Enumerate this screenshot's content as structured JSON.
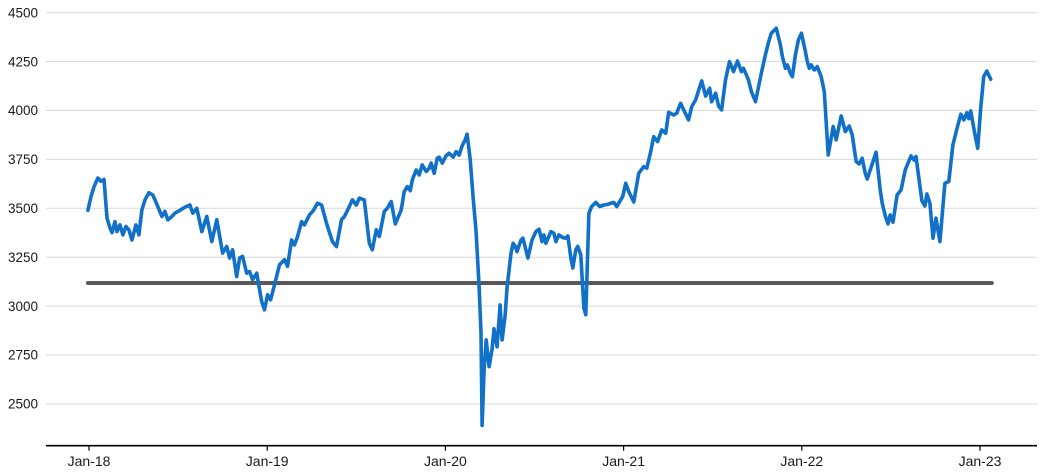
{
  "page": {
    "title": ""
  },
  "colors": {
    "background": "#ffffff",
    "grid": "#d9d9d9",
    "axis": "#000000",
    "tick_text": "#1a1a1a",
    "series_blue": "#1170c8",
    "series_gray": "#595959"
  },
  "chart_data": {
    "type": "line",
    "title": "",
    "legend": "none",
    "grid": "horizontal",
    "x_axis": {
      "tick_labels": [
        "Jan-18",
        "Jan-19",
        "Jan-20",
        "Jan-21",
        "Jan-22",
        "Jan-23"
      ],
      "tick_years": [
        2018,
        2019,
        2020,
        2021,
        2022,
        2023
      ]
    },
    "y_axis": {
      "ticks": [
        4500,
        4250,
        4000,
        3750,
        3500,
        3250,
        3000,
        2750,
        2500
      ]
    },
    "series": [
      {
        "name": "index-price",
        "color_key": "series_blue",
        "stroke_width": 3.6,
        "points": [
          [
            2017.994,
            3490
          ],
          [
            2018.011,
            3560
          ],
          [
            2018.028,
            3610
          ],
          [
            2018.05,
            3655
          ],
          [
            2018.067,
            3638
          ],
          [
            2018.084,
            3648
          ],
          [
            2018.101,
            3450
          ],
          [
            2018.118,
            3400
          ],
          [
            2018.129,
            3376
          ],
          [
            2018.146,
            3432
          ],
          [
            2018.157,
            3381
          ],
          [
            2018.174,
            3415
          ],
          [
            2018.19,
            3364
          ],
          [
            2018.207,
            3407
          ],
          [
            2018.224,
            3390
          ],
          [
            2018.241,
            3338
          ],
          [
            2018.263,
            3415
          ],
          [
            2018.28,
            3364
          ],
          [
            2018.297,
            3492
          ],
          [
            2018.314,
            3543
          ],
          [
            2018.336,
            3580
          ],
          [
            2018.358,
            3568
          ],
          [
            2018.381,
            3520
          ],
          [
            2018.409,
            3458
          ],
          [
            2018.426,
            3484
          ],
          [
            2018.442,
            3441
          ],
          [
            2018.465,
            3458
          ],
          [
            2018.482,
            3475
          ],
          [
            2018.51,
            3490
          ],
          [
            2018.537,
            3505
          ],
          [
            2018.566,
            3517
          ],
          [
            2018.582,
            3475
          ],
          [
            2018.605,
            3500
          ],
          [
            2018.633,
            3381
          ],
          [
            2018.661,
            3458
          ],
          [
            2018.689,
            3330
          ],
          [
            2018.717,
            3441
          ],
          [
            2018.75,
            3271
          ],
          [
            2018.773,
            3305
          ],
          [
            2018.789,
            3246
          ],
          [
            2018.806,
            3288
          ],
          [
            2018.829,
            3151
          ],
          [
            2018.845,
            3246
          ],
          [
            2018.862,
            3254
          ],
          [
            2018.885,
            3168
          ],
          [
            2018.901,
            3177
          ],
          [
            2018.918,
            3135
          ],
          [
            2018.941,
            3168
          ],
          [
            2018.969,
            3023
          ],
          [
            2018.985,
            2981
          ],
          [
            2019.002,
            3058
          ],
          [
            2019.019,
            3032
          ],
          [
            2019.041,
            3109
          ],
          [
            2019.069,
            3211
          ],
          [
            2019.097,
            3237
          ],
          [
            2019.114,
            3203
          ],
          [
            2019.137,
            3338
          ],
          [
            2019.153,
            3313
          ],
          [
            2019.17,
            3355
          ],
          [
            2019.193,
            3432
          ],
          [
            2019.209,
            3415
          ],
          [
            2019.237,
            3466
          ],
          [
            2019.26,
            3490
          ],
          [
            2019.282,
            3526
          ],
          [
            2019.305,
            3517
          ],
          [
            2019.333,
            3424
          ],
          [
            2019.366,
            3330
          ],
          [
            2019.389,
            3304
          ],
          [
            2019.417,
            3441
          ],
          [
            2019.433,
            3458
          ],
          [
            2019.456,
            3500
          ],
          [
            2019.478,
            3543
          ],
          [
            2019.5,
            3517
          ],
          [
            2019.517,
            3552
          ],
          [
            2019.545,
            3543
          ],
          [
            2019.573,
            3322
          ],
          [
            2019.59,
            3288
          ],
          [
            2019.612,
            3390
          ],
          [
            2019.629,
            3356
          ],
          [
            2019.657,
            3484
          ],
          [
            2019.674,
            3500
          ],
          [
            2019.696,
            3534
          ],
          [
            2019.719,
            3420
          ],
          [
            2019.752,
            3492
          ],
          [
            2019.769,
            3585
          ],
          [
            2019.786,
            3611
          ],
          [
            2019.803,
            3590
          ],
          [
            2019.814,
            3645
          ],
          [
            2019.836,
            3696
          ],
          [
            2019.853,
            3670
          ],
          [
            2019.87,
            3722
          ],
          [
            2019.892,
            3688
          ],
          [
            2019.909,
            3705
          ],
          [
            2019.92,
            3731
          ],
          [
            2019.937,
            3679
          ],
          [
            2019.954,
            3756
          ],
          [
            2019.965,
            3761
          ],
          [
            2019.982,
            3731
          ],
          [
            2020.004,
            3769
          ],
          [
            2020.021,
            3781
          ],
          [
            2020.044,
            3762
          ],
          [
            2020.06,
            3790
          ],
          [
            2020.077,
            3772
          ],
          [
            2020.094,
            3820
          ],
          [
            2020.111,
            3850
          ],
          [
            2020.122,
            3879
          ],
          [
            2020.139,
            3750
          ],
          [
            2020.156,
            3550
          ],
          [
            2020.172,
            3380
          ],
          [
            2020.189,
            3100
          ],
          [
            2020.2,
            2863
          ],
          [
            2020.206,
            2390
          ],
          [
            2020.217,
            2674
          ],
          [
            2020.229,
            2827
          ],
          [
            2020.245,
            2690
          ],
          [
            2020.262,
            2780
          ],
          [
            2020.273,
            2884
          ],
          [
            2020.29,
            2792
          ],
          [
            2020.307,
            3006
          ],
          [
            2020.318,
            2827
          ],
          [
            2020.335,
            2950
          ],
          [
            2020.346,
            3098
          ],
          [
            2020.368,
            3270
          ],
          [
            2020.38,
            3321
          ],
          [
            2020.391,
            3307
          ],
          [
            2020.402,
            3278
          ],
          [
            2020.424,
            3338
          ],
          [
            2020.435,
            3347
          ],
          [
            2020.452,
            3288
          ],
          [
            2020.463,
            3246
          ],
          [
            2020.486,
            3338
          ],
          [
            2020.508,
            3381
          ],
          [
            2020.525,
            3393
          ],
          [
            2020.542,
            3330
          ],
          [
            2020.553,
            3364
          ],
          [
            2020.564,
            3321
          ],
          [
            2020.592,
            3381
          ],
          [
            2020.609,
            3372
          ],
          [
            2020.62,
            3330
          ],
          [
            2020.637,
            3364
          ],
          [
            2020.659,
            3350
          ],
          [
            2020.676,
            3347
          ],
          [
            2020.687,
            3359
          ],
          [
            2020.704,
            3246
          ],
          [
            2020.715,
            3195
          ],
          [
            2020.732,
            3288
          ],
          [
            2020.743,
            3305
          ],
          [
            2020.76,
            3262
          ],
          [
            2020.777,
            2990
          ],
          [
            2020.788,
            2956
          ],
          [
            2020.805,
            3475
          ],
          [
            2020.821,
            3509
          ],
          [
            2020.844,
            3530
          ],
          [
            2020.866,
            3509
          ],
          [
            2020.889,
            3517
          ],
          [
            2020.911,
            3520
          ],
          [
            2020.928,
            3526
          ],
          [
            2020.945,
            3530
          ],
          [
            2020.962,
            3509
          ],
          [
            2020.978,
            3535
          ],
          [
            2020.995,
            3560
          ],
          [
            2021.012,
            3628
          ],
          [
            2021.029,
            3585
          ],
          [
            2021.057,
            3532
          ],
          [
            2021.085,
            3679
          ],
          [
            2021.113,
            3713
          ],
          [
            2021.13,
            3705
          ],
          [
            2021.152,
            3790
          ],
          [
            2021.169,
            3866
          ],
          [
            2021.191,
            3841
          ],
          [
            2021.214,
            3901
          ],
          [
            2021.236,
            3884
          ],
          [
            2021.253,
            3991
          ],
          [
            2021.281,
            3977
          ],
          [
            2021.298,
            3986
          ],
          [
            2021.32,
            4037
          ],
          [
            2021.337,
            4003
          ],
          [
            2021.365,
            3952
          ],
          [
            2021.382,
            4020
          ],
          [
            2021.404,
            4054
          ],
          [
            2021.438,
            4152
          ],
          [
            2021.46,
            4074
          ],
          [
            2021.483,
            4114
          ],
          [
            2021.494,
            4045
          ],
          [
            2021.516,
            4088
          ],
          [
            2021.533,
            4023
          ],
          [
            2021.55,
            4003
          ],
          [
            2021.572,
            4156
          ],
          [
            2021.594,
            4250
          ],
          [
            2021.617,
            4199
          ],
          [
            2021.639,
            4253
          ],
          [
            2021.661,
            4199
          ],
          [
            2021.673,
            4216
          ],
          [
            2021.701,
            4156
          ],
          [
            2021.717,
            4096
          ],
          [
            2021.74,
            4045
          ],
          [
            2021.773,
            4190
          ],
          [
            2021.796,
            4285
          ],
          [
            2021.812,
            4344
          ],
          [
            2021.829,
            4395
          ],
          [
            2021.857,
            4420
          ],
          [
            2021.88,
            4335
          ],
          [
            2021.891,
            4275
          ],
          [
            2021.908,
            4216
          ],
          [
            2021.919,
            4233
          ],
          [
            2021.936,
            4190
          ],
          [
            2021.947,
            4173
          ],
          [
            2021.964,
            4285
          ],
          [
            2021.981,
            4361
          ],
          [
            2021.998,
            4395
          ],
          [
            2022.02,
            4301
          ],
          [
            2022.031,
            4250
          ],
          [
            2022.042,
            4216
          ],
          [
            2022.053,
            4233
          ],
          [
            2022.07,
            4207
          ],
          [
            2022.087,
            4224
          ],
          [
            2022.109,
            4173
          ],
          [
            2022.126,
            4096
          ],
          [
            2022.148,
            3773
          ],
          [
            2022.176,
            3918
          ],
          [
            2022.193,
            3850
          ],
          [
            2022.221,
            3972
          ],
          [
            2022.244,
            3892
          ],
          [
            2022.266,
            3921
          ],
          [
            2022.283,
            3875
          ],
          [
            2022.305,
            3739
          ],
          [
            2022.322,
            3727
          ],
          [
            2022.339,
            3756
          ],
          [
            2022.356,
            3679
          ],
          [
            2022.367,
            3650
          ],
          [
            2022.384,
            3696
          ],
          [
            2022.417,
            3787
          ],
          [
            2022.44,
            3594
          ],
          [
            2022.451,
            3526
          ],
          [
            2022.468,
            3463
          ],
          [
            2022.484,
            3420
          ],
          [
            2022.496,
            3466
          ],
          [
            2022.512,
            3429
          ],
          [
            2022.535,
            3568
          ],
          [
            2022.557,
            3594
          ],
          [
            2022.58,
            3696
          ],
          [
            2022.613,
            3768
          ],
          [
            2022.63,
            3747
          ],
          [
            2022.641,
            3765
          ],
          [
            2022.658,
            3645
          ],
          [
            2022.674,
            3539
          ],
          [
            2022.691,
            3512
          ],
          [
            2022.702,
            3573
          ],
          [
            2022.719,
            3526
          ],
          [
            2022.736,
            3347
          ],
          [
            2022.753,
            3450
          ],
          [
            2022.775,
            3330
          ],
          [
            2022.803,
            3628
          ],
          [
            2022.825,
            3637
          ],
          [
            2022.848,
            3824
          ],
          [
            2022.87,
            3904
          ],
          [
            2022.892,
            3981
          ],
          [
            2022.909,
            3952
          ],
          [
            2022.926,
            3989
          ],
          [
            2022.937,
            3958
          ],
          [
            2022.948,
            3998
          ],
          [
            2022.97,
            3884
          ],
          [
            2022.987,
            3807
          ],
          [
            2023.004,
            4011
          ],
          [
            2023.021,
            4173
          ],
          [
            2023.038,
            4202
          ],
          [
            2023.06,
            4160
          ]
        ]
      },
      {
        "name": "reference-level",
        "color_key": "series_gray",
        "stroke_width": 4,
        "points": [
          [
            2017.994,
            3118
          ],
          [
            2023.066,
            3118
          ]
        ]
      }
    ]
  }
}
